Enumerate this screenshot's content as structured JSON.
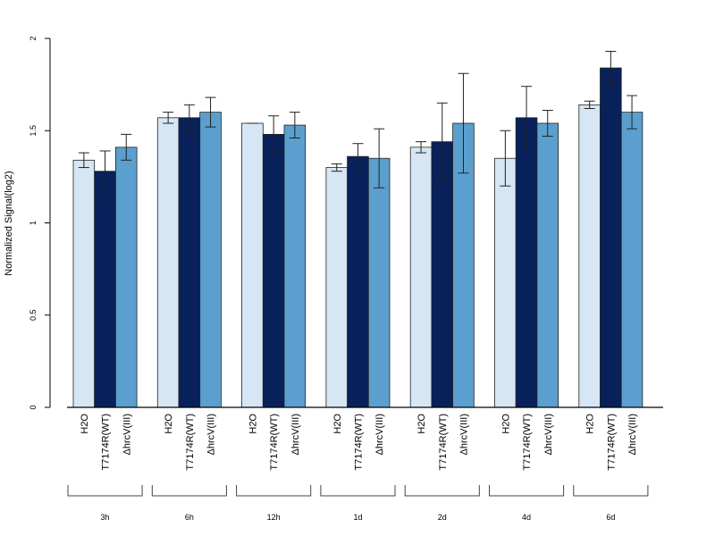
{
  "chart_data": {
    "type": "bar",
    "ylabel": "Normalized Signal(log2)",
    "ylim": [
      0,
      2
    ],
    "yticks": [
      0,
      0.5,
      1,
      1.5,
      2
    ],
    "ytick_labels": [
      "0",
      "0.5",
      "1",
      "1.5",
      "2"
    ],
    "series_labels": [
      "H2O",
      "T7174R(WT)",
      "ΔhrcV(III)"
    ],
    "colors": [
      "#d6e6f4",
      "#08215a",
      "#5b9fce"
    ],
    "groups": [
      {
        "label": "3h",
        "values": [
          1.34,
          1.28,
          1.41
        ],
        "errors": [
          0.04,
          0.11,
          0.07
        ]
      },
      {
        "label": "6h",
        "values": [
          1.57,
          1.57,
          1.6
        ],
        "errors": [
          0.03,
          0.07,
          0.08
        ]
      },
      {
        "label": "12h",
        "values": [
          1.54,
          1.48,
          1.53
        ],
        "errors": [
          0.0,
          0.1,
          0.07
        ]
      },
      {
        "label": "1d",
        "values": [
          1.3,
          1.36,
          1.35
        ],
        "errors": [
          0.02,
          0.07,
          0.16
        ]
      },
      {
        "label": "2d",
        "values": [
          1.41,
          1.44,
          1.54
        ],
        "errors": [
          0.03,
          0.21,
          0.27
        ]
      },
      {
        "label": "4d",
        "values": [
          1.35,
          1.57,
          1.54
        ],
        "errors": [
          0.15,
          0.17,
          0.07
        ]
      },
      {
        "label": "6d",
        "values": [
          1.64,
          1.84,
          1.6
        ],
        "errors": [
          0.02,
          0.09,
          0.09
        ]
      }
    ]
  }
}
